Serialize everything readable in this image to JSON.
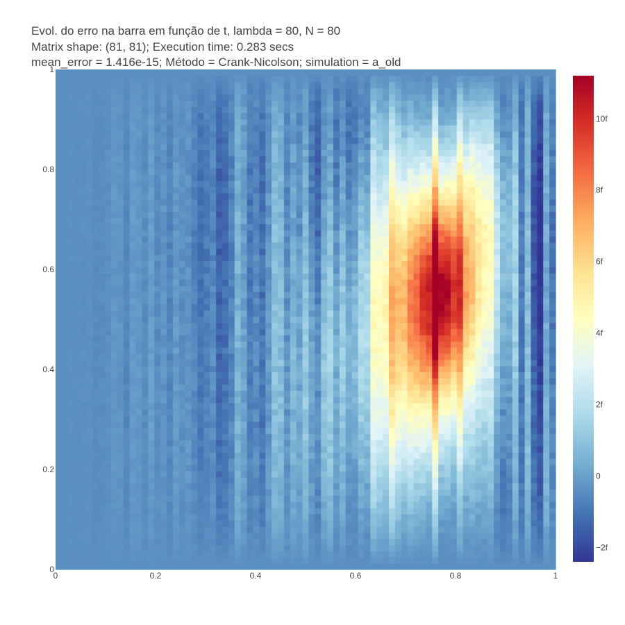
{
  "chart_data": {
    "type": "heatmap",
    "title_lines": [
      "Evol. do erro na barra em função de t, lambda = 80, N = 80",
      "Matrix shape: (81, 81); Execution time: 0.283 secs",
      "mean_error = 1.416e-15; Método = Crank-Nicolson; simulation = a_old"
    ],
    "xlabel": "",
    "ylabel": "",
    "xlim": [
      0,
      1
    ],
    "ylim": [
      0,
      1
    ],
    "x_ticks": [
      "0",
      "0.2",
      "0.4",
      "0.6",
      "0.8",
      "1"
    ],
    "x_tick_values": [
      0,
      0.2,
      0.4,
      0.6,
      0.8,
      1
    ],
    "y_ticks": [
      "0",
      "0.2",
      "0.4",
      "0.6",
      "0.8",
      "1"
    ],
    "y_tick_values": [
      0,
      0.2,
      0.4,
      0.6,
      0.8,
      1
    ],
    "grid": {
      "nx": 81,
      "ny": 81
    },
    "colorscale": "RdYlBu (reversed)",
    "colors": [
      "#313695",
      "#4575b4",
      "#74add1",
      "#abd9e9",
      "#e0f3f8",
      "#ffffbf",
      "#fee090",
      "#fdae61",
      "#f46d43",
      "#d73027",
      "#a50026"
    ],
    "zlim": [
      -2.4,
      11.2
    ],
    "zunit": "e-15",
    "colorbar_ticks": [
      "−2f",
      "0",
      "2f",
      "4f",
      "6f",
      "8f",
      "10f"
    ],
    "colorbar_tick_values": [
      -2,
      0,
      2,
      4,
      6,
      8,
      10
    ],
    "features": [
      {
        "x": 0.78,
        "y": 0.55,
        "value": 11.0,
        "kind": "max"
      },
      {
        "x": 0.72,
        "y": 0.55,
        "value": 7.0
      },
      {
        "x": 0.85,
        "y": 0.7,
        "value": 6.0
      },
      {
        "x": 0.53,
        "y": 0.82,
        "value": -2.0
      },
      {
        "x": 0.97,
        "y": 0.58,
        "value": -2.2,
        "kind": "min"
      },
      {
        "x": 0.3,
        "y": 0.7,
        "value": -1.0
      },
      {
        "x": 0.1,
        "y": 0.5,
        "value": -0.6
      }
    ]
  }
}
